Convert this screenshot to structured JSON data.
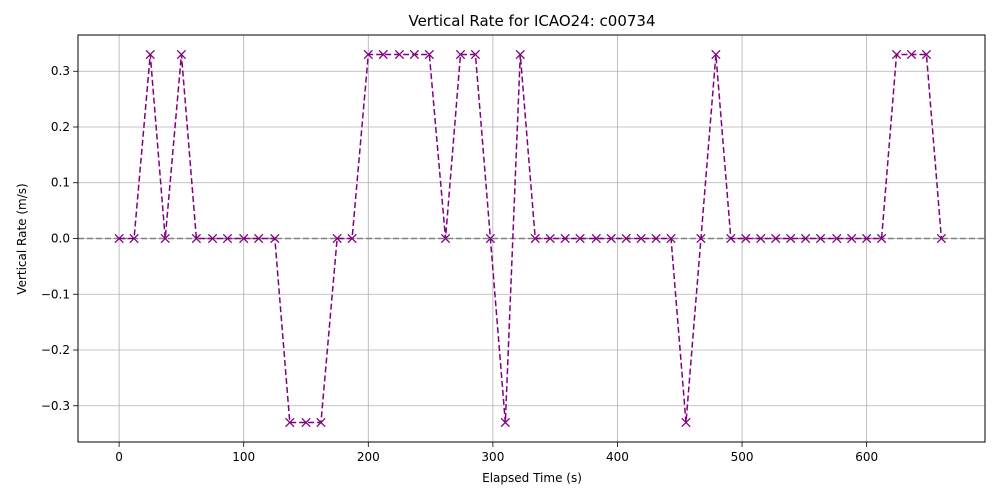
{
  "chart_data": {
    "type": "line",
    "title": "Vertical Rate for ICAO24: c00734",
    "xlabel": "Elapsed Time (s)",
    "ylabel": "Vertical Rate (m/s)",
    "xlim": [
      -33,
      695
    ],
    "ylim": [
      -0.365,
      0.365
    ],
    "xticks": [
      0,
      100,
      200,
      300,
      400,
      500,
      600
    ],
    "yticks": [
      -0.3,
      -0.2,
      -0.1,
      0.0,
      0.1,
      0.2,
      0.3
    ],
    "xtick_labels": [
      "0",
      "100",
      "200",
      "300",
      "400",
      "500",
      "600"
    ],
    "ytick_labels": [
      "−0.3",
      "−0.2",
      "−0.1",
      "0.0",
      "0.1",
      "0.2",
      "0.3"
    ],
    "grid": true,
    "reference_line": {
      "y": 0.0,
      "color": "#808080",
      "style": "dashed"
    },
    "series": [
      {
        "color": "#800080",
        "line_style": "dashed",
        "marker": "x",
        "x": [
          0,
          12,
          25,
          37,
          50,
          62,
          75,
          87,
          100,
          112,
          125,
          137,
          150,
          162,
          175,
          187,
          200,
          212,
          225,
          237,
          249,
          262,
          274,
          286,
          298,
          310,
          322,
          334,
          346,
          358,
          370,
          383,
          395,
          407,
          419,
          431,
          443,
          455,
          467,
          479,
          491,
          503,
          515,
          527,
          539,
          551,
          563,
          576,
          588,
          600,
          612,
          624,
          636,
          648,
          660
        ],
        "y": [
          0,
          0,
          0.33,
          0,
          0.33,
          0,
          0,
          0,
          0,
          0,
          0,
          -0.33,
          -0.33,
          -0.33,
          0,
          0,
          0.33,
          0.33,
          0.33,
          0.33,
          0.33,
          0,
          0.33,
          0.33,
          0,
          -0.33,
          0.33,
          0,
          0,
          0,
          0,
          0,
          0,
          0,
          0,
          0,
          0,
          -0.33,
          0,
          0.33,
          0,
          0,
          0,
          0,
          0,
          0,
          0,
          0,
          0,
          0,
          0,
          0.33,
          0.33,
          0.33,
          0
        ]
      }
    ]
  }
}
